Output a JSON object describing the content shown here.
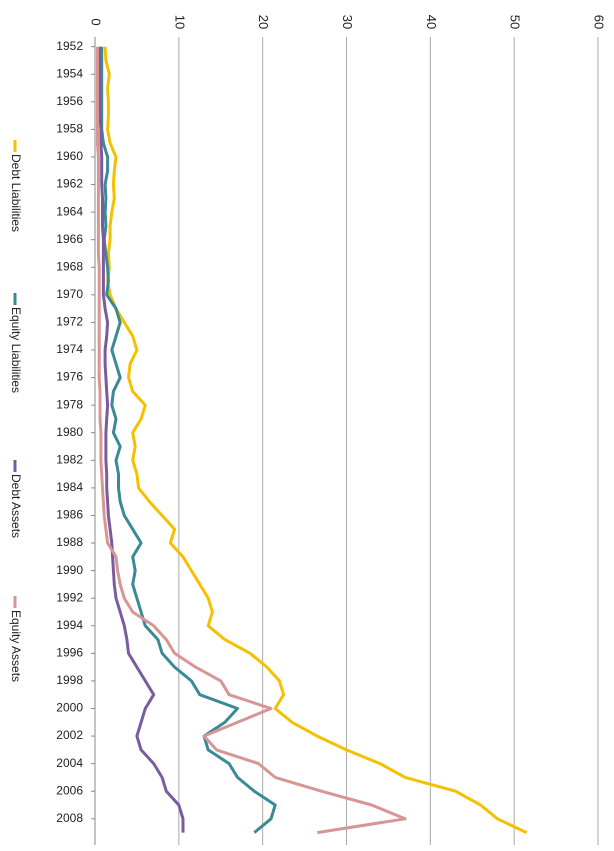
{
  "chart_data": {
    "type": "line",
    "x": [
      1952,
      1953,
      1954,
      1955,
      1956,
      1957,
      1958,
      1959,
      1960,
      1961,
      1962,
      1963,
      1964,
      1965,
      1966,
      1967,
      1968,
      1969,
      1970,
      1971,
      1972,
      1973,
      1974,
      1975,
      1976,
      1977,
      1978,
      1979,
      1980,
      1981,
      1982,
      1983,
      1984,
      1985,
      1986,
      1987,
      1988,
      1989,
      1990,
      1991,
      1992,
      1993,
      1994,
      1995,
      1996,
      1997,
      1998,
      1999,
      2000,
      2001,
      2002,
      2003,
      2004,
      2005,
      2006,
      2007,
      2008,
      2009
    ],
    "xlim": [
      1951.3,
      2009.9
    ],
    "xticks": [
      1952,
      1954,
      1956,
      1958,
      1960,
      1962,
      1964,
      1966,
      1968,
      1970,
      1972,
      1974,
      1976,
      1978,
      1980,
      1982,
      1984,
      1986,
      1988,
      1990,
      1992,
      1994,
      1996,
      1998,
      2000,
      2002,
      2004,
      2006,
      2008
    ],
    "ylim": [
      0,
      60
    ],
    "yticks": [
      0,
      10,
      20,
      30,
      40,
      50,
      60
    ],
    "grid": true,
    "series": [
      {
        "name": "Debt Liabilities",
        "color": "#f5c000",
        "values": [
          1.2,
          1.3,
          1.7,
          1.5,
          1.6,
          1.6,
          1.5,
          1.8,
          2.5,
          2.3,
          2.2,
          2.3,
          2.0,
          1.8,
          1.8,
          1.6,
          1.7,
          1.5,
          1.8,
          2.5,
          3.5,
          4.5,
          5.0,
          4.2,
          4.0,
          4.5,
          6.0,
          5.5,
          4.5,
          4.8,
          4.5,
          5.0,
          5.2,
          6.5,
          8.0,
          9.5,
          9.0,
          10.5,
          11.5,
          12.5,
          13.5,
          14.0,
          13.5,
          15.5,
          18.5,
          20.5,
          22.0,
          22.5,
          21.5,
          23.5,
          26.5,
          30.0,
          34.0,
          37.0,
          43.0,
          46.0,
          48.0,
          51.5
        ]
      },
      {
        "name": "Equity Liabilities",
        "color": "#3a8a96",
        "values": [
          0.8,
          0.8,
          0.8,
          0.8,
          0.8,
          0.8,
          0.8,
          1.0,
          1.5,
          1.5,
          1.2,
          1.3,
          1.2,
          1.3,
          1.1,
          1.3,
          1.5,
          1.6,
          1.4,
          2.5,
          3.0,
          2.5,
          2.0,
          2.5,
          3.0,
          2.2,
          2.0,
          2.5,
          2.2,
          3.0,
          2.5,
          2.8,
          2.8,
          3.0,
          3.5,
          4.5,
          5.5,
          4.5,
          4.8,
          4.5,
          5.0,
          5.5,
          6.0,
          7.5,
          8.0,
          9.5,
          11.5,
          12.5,
          17.0,
          15.5,
          13.0,
          13.5,
          16.0,
          17.0,
          19.0,
          21.5,
          21.0,
          19.0
        ]
      },
      {
        "name": "Debt Assets",
        "color": "#7a5c9e",
        "values": [
          0.5,
          0.5,
          0.5,
          0.6,
          0.6,
          0.6,
          0.7,
          0.7,
          0.8,
          0.8,
          0.8,
          0.9,
          0.9,
          0.9,
          1.0,
          1.0,
          1.0,
          1.0,
          1.0,
          1.2,
          1.5,
          1.4,
          1.2,
          1.2,
          1.3,
          1.4,
          1.5,
          1.4,
          1.3,
          1.3,
          1.3,
          1.4,
          1.4,
          1.5,
          1.6,
          1.8,
          2.0,
          2.1,
          2.2,
          2.3,
          2.5,
          3.0,
          3.5,
          3.8,
          4.0,
          5.0,
          6.0,
          7.0,
          6.0,
          5.5,
          5.0,
          5.5,
          7.0,
          8.0,
          8.5,
          10.0,
          10.5,
          10.5
        ]
      },
      {
        "name": "Equity Assets",
        "color": "#d99594",
        "values": [
          0.3,
          0.3,
          0.3,
          0.3,
          0.3,
          0.3,
          0.3,
          0.3,
          0.4,
          0.4,
          0.4,
          0.4,
          0.4,
          0.4,
          0.4,
          0.4,
          0.5,
          0.5,
          0.5,
          0.5,
          0.5,
          0.5,
          0.5,
          0.5,
          0.5,
          0.6,
          0.6,
          0.6,
          0.7,
          0.7,
          0.7,
          0.8,
          0.9,
          1.0,
          1.1,
          1.3,
          1.5,
          2.5,
          2.7,
          3.0,
          3.5,
          4.5,
          7.0,
          8.5,
          9.5,
          12.0,
          15.0,
          16.0,
          21.0,
          17.0,
          13.0,
          14.5,
          19.5,
          21.5,
          27.0,
          33.0,
          37.0,
          26.5
        ]
      }
    ]
  }
}
